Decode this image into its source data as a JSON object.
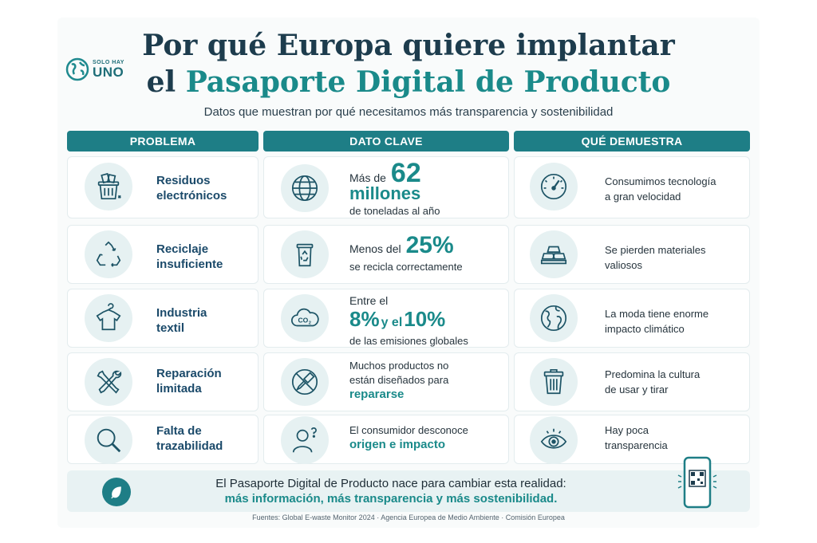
{
  "brand": {
    "small": "SOLO HAY",
    "big": "UNO"
  },
  "title": {
    "line1": "Por qué Europa quiere implantar",
    "line2_prefix": "el ",
    "line2_accent": "Pasaporte Digital de Producto"
  },
  "subtitle": "Datos que muestran por qué necesitamos más transparencia y sostenibilidad",
  "columns": {
    "problem": "PROBLEMA",
    "key": "DATO CLAVE",
    "shows": "QUÉ DEMUESTRA"
  },
  "rows": [
    {
      "problem": [
        "Residuos",
        "electrónicos"
      ],
      "key": {
        "pre": "Más de ",
        "big": "62",
        "big2": "millones",
        "post": "de toneladas al año"
      },
      "shows": [
        "Consumimos tecnología",
        "a gran velocidad"
      ]
    },
    {
      "problem": [
        "Reciclaje",
        "insuficiente"
      ],
      "key": {
        "pre": "Menos del ",
        "big": "25%",
        "post": "se recicla correctamente"
      },
      "shows": [
        "Se pierden materiales",
        "valiosos"
      ]
    },
    {
      "problem": [
        "Industria",
        "textil"
      ],
      "key": {
        "pre": "Entre el",
        "big": "8%",
        "mid": " y el ",
        "big2": "10%",
        "post": "de las emisiones globales"
      },
      "shows": [
        "La moda tiene enorme",
        "impacto climático"
      ]
    },
    {
      "problem": [
        "Reparación",
        "limitada"
      ],
      "key": {
        "line1": "Muchos productos no",
        "line2": "están diseñados para",
        "accent": "repararse"
      },
      "shows": [
        "Predomina la cultura",
        "de usar y tirar"
      ]
    },
    {
      "problem": [
        "Falta de",
        "trazabilidad"
      ],
      "key": {
        "line1": "El consumidor desconoce",
        "accent": "origen e impacto"
      },
      "shows": [
        "Hay poca",
        "transparencia"
      ]
    }
  ],
  "footer": {
    "line1": "El Pasaporte Digital de Producto nace para cambiar esta realidad:",
    "line2": "más información, más transparencia y más sostenibilidad."
  },
  "sources": "Fuentes: Global E-waste Monitor 2024 · Agencia Europea de Medio Ambiente · Comisión Europea",
  "colors": {
    "accent": "#1a8a8a",
    "header": "#1e7e86",
    "navy": "#1d3c4d"
  },
  "icons": {
    "problem": [
      "trash-electronics-icon",
      "recycle-icon",
      "tshirt-icon",
      "tools-icon",
      "magnifier-icon"
    ],
    "key": [
      "globe-icon",
      "recycle-bin-icon",
      "co2-cloud-icon",
      "no-screwdriver-icon",
      "person-question-icon"
    ],
    "shows": [
      "gauge-icon",
      "gold-bars-icon",
      "earth-icon",
      "trash-can-icon",
      "eye-icon"
    ]
  }
}
